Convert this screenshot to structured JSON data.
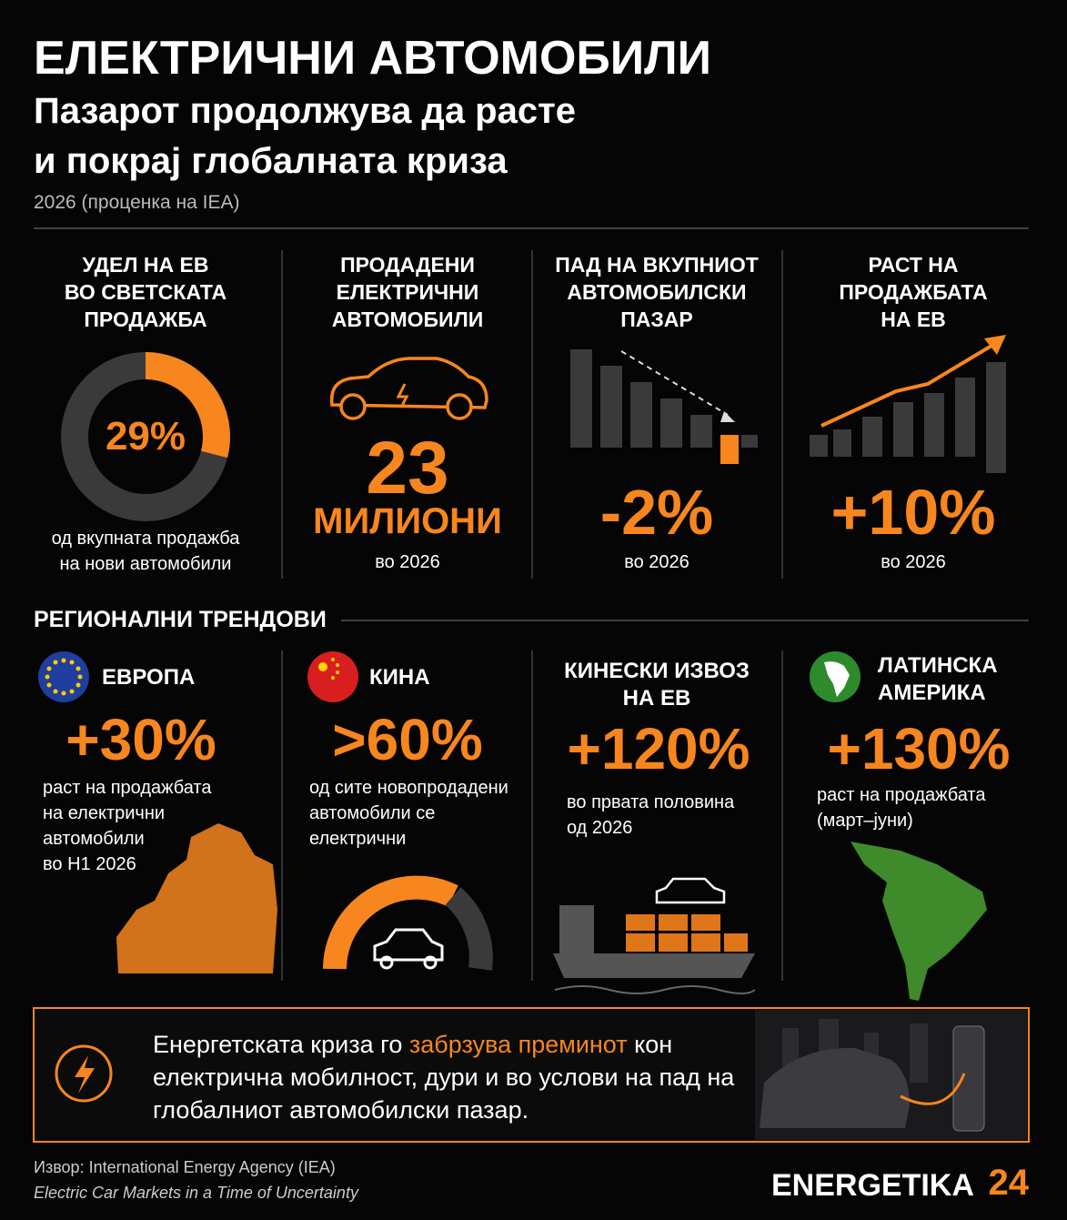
{
  "header": {
    "title": "ЕЛЕКТРИЧНИ АВТОМОБИЛИ",
    "subtitle_lines": [
      "Пазарот продолжува да расте",
      "и покрај глобалната криза"
    ],
    "note": "2026 (проценка на IEA)"
  },
  "stats": [
    {
      "heading": [
        "УДЕЛ НА ЕВ",
        "ВО СВЕТСКАТА",
        "ПРОДАЖБА"
      ],
      "share": {
        "value": 29,
        "label": "29%"
      },
      "caption": [
        "од вкупната продажба",
        "на нови автомобили"
      ]
    },
    {
      "heading": [
        "ПРОДАДЕНИ",
        "ЕЛЕКТРИЧНИ",
        "АВТОМОБИЛИ"
      ],
      "value": "23",
      "unit": "МИЛИОНИ",
      "caption": [
        "во 2026"
      ]
    },
    {
      "heading": [
        "ПАД НА ВКУПНИОТ",
        "АВТОМОБИЛСКИ",
        "ПАЗАР"
      ],
      "value": "-2%",
      "caption": [
        "во 2026"
      ]
    },
    {
      "heading": [
        "РАСТ НА",
        "ПРОДАЖБАТА",
        "НА ЕВ"
      ],
      "value": "+10%",
      "caption": [
        "во 2026"
      ]
    }
  ],
  "regional": {
    "title": "РЕГИОНАЛНИ ТРЕНДОВИ",
    "items": [
      {
        "name": [
          "ЕВРОПА"
        ],
        "value": "+30%",
        "caption": [
          "раст на продажбата",
          "на електрични",
          "автомобили",
          "во H1 2026"
        ]
      },
      {
        "name": [
          "КИНА"
        ],
        "value": ">60%",
        "caption": [
          "од сите новопродадени",
          "автомобили се",
          "електрични"
        ]
      },
      {
        "name": [
          "КИНЕСКИ ИЗВОЗ",
          "НА ЕВ"
        ],
        "value": "+120%",
        "caption": [
          "во првата половина",
          "од 2026"
        ]
      },
      {
        "name": [
          "ЛАТИНСКА",
          "АМЕРИКА"
        ],
        "value": "+130%",
        "caption": [
          "раст на продажбата",
          "(март–јуни)"
        ]
      }
    ]
  },
  "banner": {
    "before": "Енергетската криза го ",
    "highlight": "забрзува преминот",
    "after": " кон електрична мобилност, дури и во услови на пад на глобалниот автомобилски пазар."
  },
  "footer": {
    "source": "Извор: International Energy Agency (IEA)",
    "report": "Electric Car Markets in a Time of Uncertainty",
    "brand": "ENERGETIKA",
    "brand_number": "24"
  }
}
